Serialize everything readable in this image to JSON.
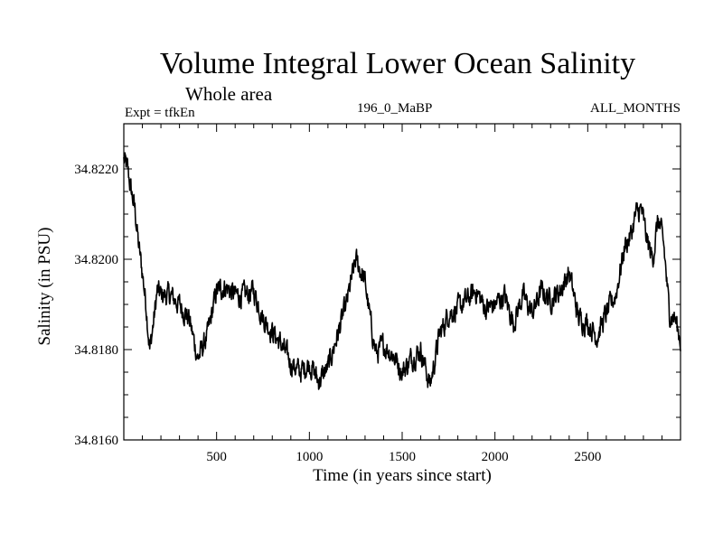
{
  "chart_data": {
    "type": "line",
    "title": "Volume Integral Lower Ocean Salinity",
    "subtitle": "Whole area",
    "left_note": "Expt = tfkEn",
    "center_note": "196_0_MaBP",
    "right_note": "ALL_MONTHS",
    "xlabel": "Time (in years since start)",
    "ylabel": "Salinity (in PSU)",
    "xlim": [
      0,
      3000
    ],
    "ylim": [
      34.816,
      34.823
    ],
    "x_ticks": [
      500,
      1000,
      1500,
      2000,
      2500
    ],
    "x_tick_labels": [
      "500",
      "1000",
      "1500",
      "2000",
      "2500"
    ],
    "y_ticks": [
      34.816,
      34.818,
      34.82,
      34.822
    ],
    "y_tick_labels": [
      "34.8160",
      "34.8180",
      "34.8200",
      "34.8220"
    ],
    "line_color": "#000000",
    "grid": false,
    "series": [
      {
        "x": [
          0,
          20,
          40,
          60,
          80,
          100,
          120,
          140,
          160,
          180,
          200,
          250,
          300,
          350,
          400,
          450,
          500,
          550,
          600,
          650,
          700,
          750,
          800,
          850,
          900,
          950,
          1000,
          1050,
          1100,
          1150,
          1200,
          1250,
          1270,
          1300,
          1330,
          1360,
          1400,
          1450,
          1500,
          1550,
          1600,
          1650,
          1700,
          1750,
          1800,
          1850,
          1900,
          1950,
          2000,
          2050,
          2100,
          2150,
          2200,
          2250,
          2300,
          2350,
          2400,
          2450,
          2500,
          2550,
          2600,
          2650,
          2700,
          2730,
          2760,
          2790,
          2820,
          2850,
          2880,
          2910,
          2940,
          2970,
          3000
        ],
        "y": [
          34.8222,
          34.822,
          34.8215,
          34.8211,
          34.8203,
          34.8197,
          34.819,
          34.818,
          34.8186,
          34.8193,
          34.8192,
          34.8192,
          34.819,
          34.8187,
          34.8178,
          34.8183,
          34.8193,
          34.8194,
          34.8192,
          34.8192,
          34.8193,
          34.8187,
          34.8184,
          34.8181,
          34.8177,
          34.8175,
          34.8177,
          34.8173,
          34.8176,
          34.8183,
          34.819,
          34.82,
          34.8198,
          34.8195,
          34.8186,
          34.8179,
          34.8181,
          34.8179,
          34.8175,
          34.8178,
          34.818,
          34.8172,
          34.8183,
          34.8188,
          34.8189,
          34.8191,
          34.8193,
          34.8189,
          34.819,
          34.8192,
          34.8186,
          34.8192,
          34.8188,
          34.8193,
          34.8191,
          34.8193,
          34.8197,
          34.8187,
          34.8186,
          34.8183,
          34.8188,
          34.8192,
          34.8203,
          34.8205,
          34.821,
          34.8211,
          34.8204,
          34.82,
          34.8209,
          34.8203,
          34.8188,
          34.8187,
          34.8182
        ]
      }
    ]
  }
}
